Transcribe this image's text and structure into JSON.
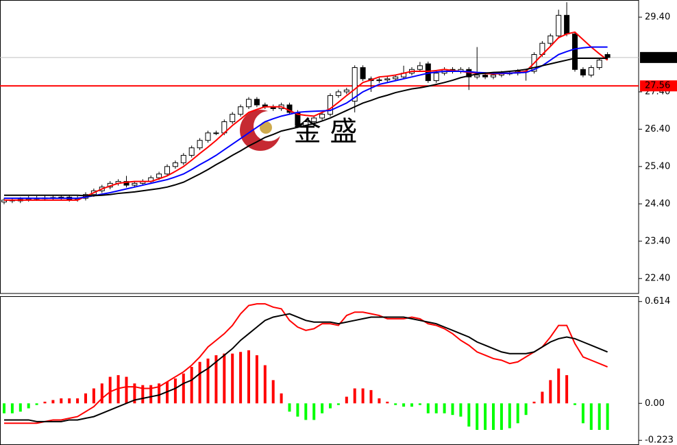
{
  "watermark": "金 盛",
  "chart_data": [
    {
      "type": "candlestick",
      "open": [
        24.45,
        24.5,
        24.48,
        24.52,
        24.55,
        24.54,
        24.56,
        24.57,
        24.58,
        24.52,
        24.55,
        24.65,
        24.75,
        24.85,
        24.95,
        25.0,
        24.9,
        24.95,
        25.0,
        25.1,
        25.2,
        25.4,
        25.5,
        25.7,
        25.9,
        26.1,
        26.3,
        26.3,
        26.6,
        26.8,
        27.0,
        27.2,
        27.05,
        27.0,
        26.95,
        27.05,
        26.85,
        26.5,
        26.6,
        26.7,
        26.8,
        27.3,
        27.4,
        27.15,
        28.05,
        27.75,
        27.7,
        27.72,
        27.75,
        27.8,
        27.9,
        28.0,
        28.15,
        27.7,
        27.9,
        28.0,
        27.95,
        28.0,
        27.8,
        27.85,
        27.8,
        27.85,
        27.9,
        27.9,
        27.95,
        27.95,
        28.4,
        28.7,
        28.9,
        29.45,
        28.95,
        28.0,
        27.85,
        28.05,
        28.4
      ],
      "high": [
        24.56,
        24.56,
        24.58,
        24.61,
        24.61,
        24.62,
        24.63,
        24.64,
        24.64,
        24.61,
        24.71,
        24.81,
        24.91,
        25.01,
        25.06,
        25.15,
        25.01,
        25.06,
        25.16,
        25.26,
        25.46,
        25.56,
        25.76,
        25.96,
        26.16,
        26.36,
        26.36,
        26.66,
        26.86,
        27.06,
        27.26,
        27.26,
        27.11,
        27.06,
        27.11,
        27.11,
        26.91,
        26.66,
        26.76,
        26.86,
        27.36,
        27.46,
        27.51,
        28.11,
        28.11,
        27.81,
        27.78,
        27.81,
        27.86,
        28.1,
        28.06,
        28.2,
        28.21,
        27.96,
        28.06,
        28.06,
        28.06,
        28.06,
        28.6,
        27.91,
        27.91,
        27.96,
        27.96,
        28.01,
        28.01,
        28.46,
        28.76,
        28.96,
        29.6,
        29.8,
        29.01,
        28.06,
        28.11,
        28.31,
        28.46
      ],
      "low": [
        24.39,
        24.42,
        24.42,
        24.46,
        24.48,
        24.48,
        24.5,
        24.51,
        24.46,
        24.46,
        24.49,
        24.59,
        24.69,
        24.79,
        24.89,
        24.84,
        24.84,
        24.89,
        24.94,
        25.04,
        25.14,
        25.34,
        25.44,
        25.64,
        25.84,
        26.04,
        26.24,
        26.24,
        26.54,
        26.74,
        26.94,
        26.99,
        26.94,
        26.89,
        26.89,
        26.79,
        26.44,
        26.44,
        26.54,
        26.64,
        26.74,
        27.24,
        27.34,
        26.85,
        27.69,
        27.4,
        27.64,
        27.66,
        27.69,
        27.74,
        27.84,
        27.94,
        27.64,
        27.64,
        27.84,
        27.89,
        27.89,
        27.45,
        27.74,
        27.74,
        27.74,
        27.79,
        27.84,
        27.84,
        27.7,
        27.89,
        28.34,
        28.64,
        28.84,
        28.89,
        27.94,
        27.79,
        27.79,
        27.99,
        28.26
      ],
      "close": [
        24.5,
        24.48,
        24.52,
        24.55,
        24.54,
        24.56,
        24.57,
        24.58,
        24.52,
        24.55,
        24.65,
        24.75,
        24.85,
        24.95,
        25.0,
        24.9,
        24.95,
        25.0,
        25.1,
        25.2,
        25.4,
        25.5,
        25.7,
        25.9,
        26.1,
        26.3,
        26.3,
        26.6,
        26.8,
        27.0,
        27.2,
        27.05,
        27.0,
        26.95,
        27.05,
        26.85,
        26.5,
        26.6,
        26.7,
        26.8,
        27.3,
        27.4,
        27.45,
        28.05,
        27.75,
        27.7,
        27.72,
        27.75,
        27.8,
        27.9,
        28.0,
        28.1,
        27.7,
        27.9,
        28.0,
        27.95,
        28.0,
        27.8,
        27.85,
        27.8,
        27.85,
        27.9,
        27.9,
        27.95,
        27.95,
        28.4,
        28.7,
        28.9,
        29.45,
        28.95,
        28.0,
        27.85,
        28.05,
        28.25,
        28.32
      ],
      "up_color": "#ffffff",
      "down_color": "#000000",
      "series": [
        {
          "color": "#ff0000",
          "values": [
            24.5,
            24.5,
            24.5,
            24.5,
            24.5,
            24.5,
            24.5,
            24.5,
            24.5,
            24.5,
            24.6,
            24.7,
            24.8,
            24.88,
            24.95,
            24.98,
            25.0,
            25.0,
            25.0,
            25.07,
            25.15,
            25.27,
            25.4,
            25.57,
            25.75,
            25.92,
            26.1,
            26.3,
            26.5,
            26.67,
            26.85,
            26.93,
            27.0,
            27.0,
            27.0,
            26.9,
            26.8,
            26.77,
            26.75,
            26.85,
            26.95,
            27.12,
            27.3,
            27.47,
            27.65,
            27.72,
            27.8,
            27.82,
            27.85,
            27.9,
            27.95,
            27.95,
            27.95,
            27.97,
            28.0,
            27.97,
            27.95,
            27.92,
            27.9,
            27.89,
            27.88,
            27.89,
            27.9,
            27.92,
            27.95,
            28.17,
            28.4,
            28.62,
            28.85,
            28.95,
            29.0,
            28.8,
            28.6,
            28.42,
            28.25
          ]
        },
        {
          "color": "#0000ff",
          "values": [
            24.55,
            24.55,
            24.55,
            24.55,
            24.55,
            24.55,
            24.55,
            24.55,
            24.55,
            24.55,
            24.58,
            24.62,
            24.66,
            24.7,
            24.75,
            24.8,
            24.85,
            24.9,
            24.95,
            25.0,
            25.05,
            25.12,
            25.2,
            25.32,
            25.45,
            25.57,
            25.7,
            25.85,
            26.0,
            26.15,
            26.3,
            26.45,
            26.6,
            26.68,
            26.75,
            26.8,
            26.85,
            26.87,
            26.88,
            26.89,
            26.9,
            27.0,
            27.1,
            27.25,
            27.4,
            27.5,
            27.6,
            27.65,
            27.7,
            27.75,
            27.8,
            27.85,
            27.9,
            27.93,
            27.95,
            27.95,
            27.95,
            27.94,
            27.92,
            27.91,
            27.9,
            27.9,
            27.9,
            27.91,
            27.92,
            28.0,
            28.1,
            28.25,
            28.4,
            28.48,
            28.55,
            28.58,
            28.6,
            28.6,
            28.6
          ]
        },
        {
          "color": "#000000",
          "values": [
            24.63,
            24.63,
            24.63,
            24.63,
            24.63,
            24.63,
            24.63,
            24.63,
            24.63,
            24.63,
            24.62,
            24.62,
            24.63,
            24.65,
            24.68,
            24.7,
            24.72,
            24.75,
            24.78,
            24.81,
            24.85,
            24.91,
            24.98,
            25.09,
            25.2,
            25.32,
            25.45,
            25.57,
            25.7,
            25.82,
            25.95,
            26.06,
            26.18,
            26.26,
            26.35,
            26.4,
            26.45,
            26.5,
            26.55,
            26.62,
            26.7,
            26.8,
            26.9,
            27.0,
            27.1,
            27.17,
            27.25,
            27.31,
            27.38,
            27.43,
            27.48,
            27.51,
            27.55,
            27.6,
            27.65,
            27.71,
            27.78,
            27.83,
            27.88,
            27.9,
            27.92,
            27.93,
            27.95,
            27.97,
            28.0,
            28.05,
            28.1,
            28.15,
            28.2,
            28.25,
            28.3,
            28.3,
            28.3,
            28.3,
            28.3
          ]
        }
      ],
      "ylim": [
        22.0,
        29.86
      ],
      "yticks": [
        {
          "value": 29.4,
          "label": "29.40"
        },
        {
          "value": 27.4,
          "label": "27.40"
        },
        {
          "value": 26.4,
          "label": "26.40"
        },
        {
          "value": 25.4,
          "label": "25.40"
        },
        {
          "value": 24.4,
          "label": "24.40"
        },
        {
          "value": 23.4,
          "label": "23.40"
        },
        {
          "value": 22.4,
          "label": "22.40"
        }
      ],
      "last_price": 28.32,
      "last_price_color": "#000000",
      "level": 27.56,
      "level_color": "#ff0000"
    },
    {
      "type": "macd",
      "histogram": [
        -0.06,
        -0.06,
        -0.05,
        -0.03,
        -0.01,
        0.01,
        0.02,
        0.03,
        0.03,
        0.03,
        0.06,
        0.09,
        0.12,
        0.16,
        0.17,
        0.16,
        0.12,
        0.11,
        0.11,
        0.12,
        0.13,
        0.15,
        0.18,
        0.22,
        0.25,
        0.27,
        0.29,
        0.3,
        0.3,
        0.31,
        0.32,
        0.29,
        0.23,
        0.14,
        0.06,
        -0.05,
        -0.08,
        -0.1,
        -0.1,
        -0.06,
        -0.03,
        -0.01,
        0.04,
        0.09,
        0.09,
        0.08,
        0.03,
        0.01,
        -0.01,
        -0.02,
        -0.02,
        -0.01,
        -0.06,
        -0.06,
        -0.06,
        -0.07,
        -0.08,
        -0.14,
        -0.16,
        -0.16,
        -0.16,
        -0.16,
        -0.15,
        -0.12,
        -0.07,
        0.01,
        0.07,
        0.14,
        0.21,
        0.17,
        -0.01,
        -0.12,
        -0.16,
        -0.16,
        -0.16
      ],
      "up_color": "#ff0000",
      "down_color": "#00ff00",
      "series": [
        {
          "color": "#ff0000",
          "values": [
            -0.12,
            -0.12,
            -0.12,
            -0.12,
            -0.12,
            -0.11,
            -0.1,
            -0.1,
            -0.09,
            -0.08,
            -0.05,
            -0.02,
            0.03,
            0.07,
            0.09,
            0.1,
            0.1,
            0.09,
            0.09,
            0.1,
            0.13,
            0.16,
            0.19,
            0.23,
            0.28,
            0.34,
            0.38,
            0.42,
            0.47,
            0.54,
            0.59,
            0.6,
            0.6,
            0.58,
            0.57,
            0.5,
            0.46,
            0.44,
            0.45,
            0.48,
            0.48,
            0.47,
            0.53,
            0.55,
            0.55,
            0.54,
            0.53,
            0.51,
            0.51,
            0.51,
            0.52,
            0.51,
            0.48,
            0.47,
            0.45,
            0.42,
            0.38,
            0.35,
            0.31,
            0.29,
            0.27,
            0.26,
            0.24,
            0.25,
            0.28,
            0.31,
            0.34,
            0.4,
            0.47,
            0.47,
            0.36,
            0.28,
            0.26,
            0.24,
            0.22
          ]
        },
        {
          "color": "#000000",
          "values": [
            -0.1,
            -0.1,
            -0.1,
            -0.1,
            -0.11,
            -0.11,
            -0.11,
            -0.11,
            -0.1,
            -0.1,
            -0.09,
            -0.08,
            -0.06,
            -0.04,
            -0.02,
            0.0,
            0.02,
            0.03,
            0.04,
            0.05,
            0.07,
            0.09,
            0.12,
            0.14,
            0.18,
            0.21,
            0.25,
            0.29,
            0.33,
            0.38,
            0.42,
            0.46,
            0.5,
            0.52,
            0.53,
            0.54,
            0.52,
            0.5,
            0.49,
            0.49,
            0.49,
            0.48,
            0.49,
            0.5,
            0.51,
            0.52,
            0.52,
            0.52,
            0.52,
            0.52,
            0.51,
            0.5,
            0.49,
            0.48,
            0.46,
            0.44,
            0.42,
            0.4,
            0.37,
            0.35,
            0.33,
            0.31,
            0.3,
            0.3,
            0.3,
            0.31,
            0.34,
            0.37,
            0.39,
            0.4,
            0.39,
            0.37,
            0.35,
            0.33,
            0.31
          ]
        }
      ],
      "ylim": [
        -0.247,
        0.646
      ],
      "yticks": [
        0.614,
        {
          "value": 0,
          "label": "0.00"
        },
        -0.223
      ]
    }
  ]
}
